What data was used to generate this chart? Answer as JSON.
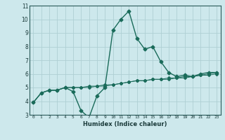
{
  "title": "",
  "xlabel": "Humidex (Indice chaleur)",
  "ylabel": "",
  "xlim": [
    -0.5,
    23.5
  ],
  "ylim": [
    3,
    11
  ],
  "xticks": [
    0,
    1,
    2,
    3,
    4,
    5,
    6,
    7,
    8,
    9,
    10,
    11,
    12,
    13,
    14,
    15,
    16,
    17,
    18,
    19,
    20,
    21,
    22,
    23
  ],
  "yticks": [
    3,
    4,
    5,
    6,
    7,
    8,
    9,
    10,
    11
  ],
  "bg_color": "#cde8ec",
  "grid_color": "#aecfd4",
  "line_color": "#1a6b5a",
  "series": [
    [
      3.9,
      4.6,
      4.8,
      4.8,
      5.0,
      4.7,
      3.3,
      2.8,
      4.4,
      5.0,
      9.2,
      10.0,
      10.6,
      8.6,
      7.8,
      8.0,
      6.9,
      6.1,
      5.8,
      5.9,
      5.8,
      6.0,
      6.1,
      6.1
    ],
    [
      3.9,
      4.6,
      4.8,
      4.8,
      5.0,
      5.0,
      5.0,
      5.0,
      5.1,
      5.1,
      5.2,
      5.3,
      5.4,
      5.5,
      5.5,
      5.6,
      5.6,
      5.7,
      5.7,
      5.8,
      5.8,
      5.9,
      6.0,
      6.1
    ],
    [
      3.9,
      4.6,
      4.8,
      4.8,
      5.0,
      5.0,
      5.0,
      5.1,
      5.1,
      5.2,
      5.2,
      5.3,
      5.4,
      5.5,
      5.5,
      5.6,
      5.6,
      5.6,
      5.7,
      5.7,
      5.8,
      5.9,
      5.9,
      6.0
    ]
  ]
}
